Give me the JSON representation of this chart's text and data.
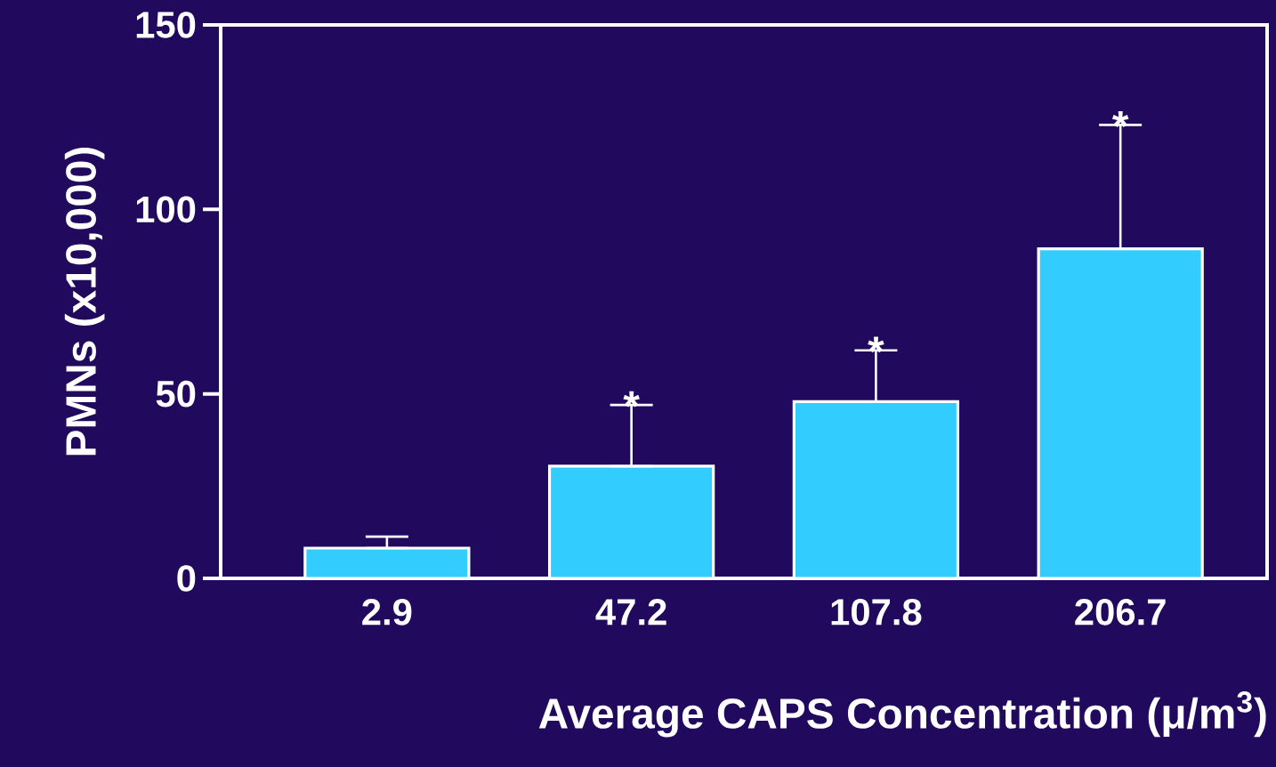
{
  "chart_data": {
    "type": "bar",
    "xlabel": "Average CAPS Concentration (μ/m$^{3}$)",
    "ylabel": "PMNs (x10,000)",
    "categories": [
      "2.9",
      "47.2",
      "107.8",
      "206.7"
    ],
    "values": [
      8.2,
      30.4,
      47.9,
      89.3
    ],
    "errors": [
      [
        8.2,
        11.3
      ],
      [
        30.4,
        47.0
      ],
      [
        47.9,
        61.8
      ],
      [
        89.3,
        122.9
      ]
    ],
    "color": "#33ccff",
    "ylim": [
      0,
      150
    ],
    "yticks": [
      0,
      50,
      100,
      150
    ],
    "annotations": [
      {
        "text": "*",
        "x": "47.2",
        "y": 47.0
      },
      {
        "text": "*",
        "x": "107.8",
        "y": 61.8
      },
      {
        "text": "*",
        "x": "206.7",
        "y": 122.9
      }
    ]
  }
}
